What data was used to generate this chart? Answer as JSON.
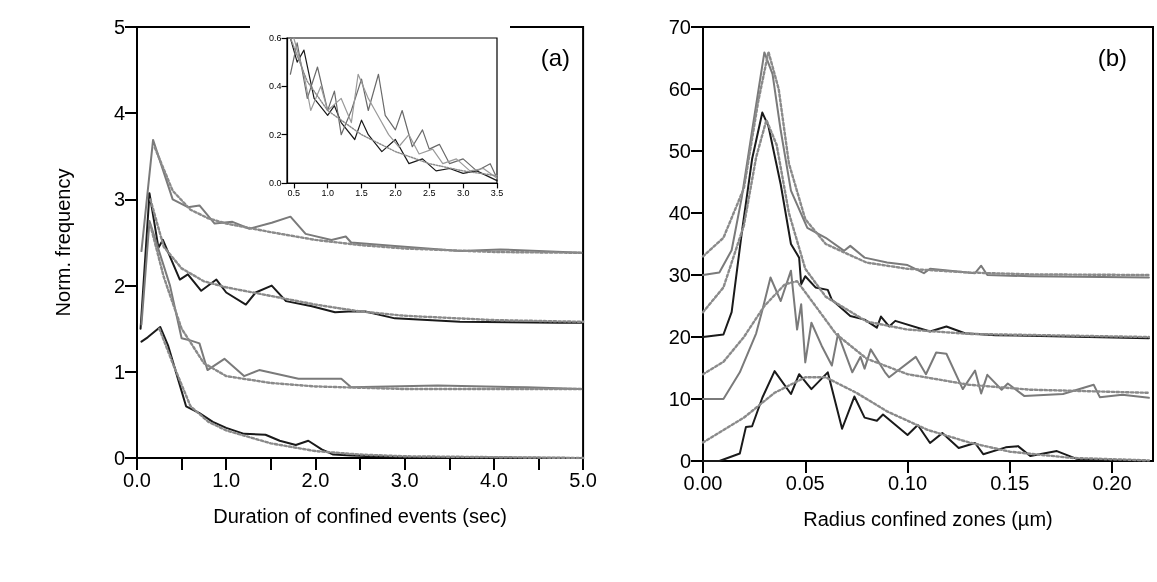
{
  "chart_data": [
    {
      "type": "line",
      "xlabel": "Duration of confined events (sec)",
      "ylabel": "Norm. frequency",
      "annotations": [
        "(a)"
      ],
      "marker": "none",
      "xlim": [
        0,
        5
      ],
      "xticks": [
        {
          "value": 0,
          "label": "0.0"
        },
        {
          "value": 0.5,
          "label": null
        },
        {
          "value": 1,
          "label": "1.0"
        },
        {
          "value": 1.5,
          "label": null
        },
        {
          "value": 2,
          "label": "2.0"
        },
        {
          "value": 2.5,
          "label": null
        },
        {
          "value": 3,
          "label": "3.0"
        },
        {
          "value": 3.5,
          "label": null
        },
        {
          "value": 4,
          "label": "4.0"
        },
        {
          "value": 4.5,
          "label": null
        },
        {
          "value": 5,
          "label": "5.0"
        }
      ],
      "ylim": [
        0,
        5
      ],
      "yticks": [
        0,
        1,
        2,
        3,
        4,
        5
      ],
      "series": [
        {
          "color": "#7a7a7a",
          "x": [
            0.05,
            0.18,
            0.4,
            0.57,
            0.7,
            0.87,
            1.07,
            1.26,
            1.51,
            1.72,
            1.89,
            2.18,
            2.34,
            2.4,
            2.89,
            3.62,
            4.07,
            4.98
          ],
          "values": [
            2.4,
            3.69,
            3.0,
            2.91,
            2.93,
            2.72,
            2.74,
            2.66,
            2.73,
            2.8,
            2.6,
            2.53,
            2.57,
            2.5,
            2.46,
            2.4,
            2.42,
            2.38
          ]
        },
        {
          "color": "#1a1a1a",
          "x": [
            0.04,
            0.14,
            0.24,
            0.29,
            0.48,
            0.57,
            0.72,
            0.89,
            1.0,
            1.22,
            1.33,
            1.51,
            1.67,
            1.96,
            2.22,
            2.37,
            2.56,
            2.89,
            3.62,
            4.73,
            4.98
          ],
          "values": [
            1.5,
            3.07,
            2.44,
            2.53,
            2.07,
            2.13,
            1.94,
            2.07,
            1.92,
            1.78,
            1.92,
            2.0,
            1.82,
            1.76,
            1.69,
            1.7,
            1.7,
            1.62,
            1.58,
            1.57,
            1.57
          ]
        },
        {
          "color": "#7a7a7a",
          "x": [
            0.05,
            0.14,
            0.37,
            0.5,
            0.58,
            0.7,
            0.79,
            0.98,
            1.2,
            1.37,
            1.81,
            2.29,
            2.4,
            3.37,
            4.37,
            4.98
          ],
          "values": [
            1.55,
            2.75,
            2.0,
            1.39,
            1.37,
            1.33,
            1.02,
            1.15,
            0.95,
            1.02,
            0.92,
            0.92,
            0.82,
            0.84,
            0.82,
            0.8
          ]
        },
        {
          "color": "#1a1a1a",
          "x": [
            0.05,
            0.12,
            0.26,
            0.35,
            0.45,
            0.55,
            0.7,
            0.85,
            1.0,
            1.2,
            1.44,
            1.6,
            1.78,
            1.92,
            2.07,
            2.2,
            2.4,
            3.0,
            4.98
          ],
          "values": [
            1.35,
            1.4,
            1.52,
            1.3,
            0.95,
            0.6,
            0.52,
            0.42,
            0.35,
            0.28,
            0.27,
            0.2,
            0.15,
            0.2,
            0.1,
            0.04,
            0.03,
            0.01,
            0
          ]
        },
        {
          "color": "#8a8a8a",
          "line_style": "dotted",
          "x": [
            0.2,
            0.4,
            0.6,
            0.8,
            1.0,
            1.5,
            2.0,
            2.5,
            3.0,
            4.0,
            5.0
          ],
          "values": [
            3.6,
            3.1,
            2.88,
            2.78,
            2.72,
            2.62,
            2.53,
            2.47,
            2.43,
            2.39,
            2.38
          ]
        },
        {
          "color": "#8a8a8a",
          "line_style": "dotted",
          "x": [
            0.15,
            0.3,
            0.5,
            0.75,
            1.0,
            1.5,
            2.0,
            2.5,
            3.0,
            4.0,
            5.0
          ],
          "values": [
            3.0,
            2.45,
            2.2,
            2.05,
            1.98,
            1.88,
            1.78,
            1.7,
            1.65,
            1.6,
            1.58
          ]
        },
        {
          "color": "#8a8a8a",
          "line_style": "dotted",
          "x": [
            0.15,
            0.3,
            0.5,
            0.75,
            1.0,
            1.5,
            2.0,
            3.0,
            5.0
          ],
          "values": [
            2.7,
            2.1,
            1.5,
            1.1,
            0.95,
            0.87,
            0.83,
            0.8,
            0.8
          ]
        },
        {
          "color": "#8a8a8a",
          "line_style": "dotted",
          "x": [
            0.25,
            0.4,
            0.6,
            0.8,
            1.0,
            1.5,
            2.0,
            2.5,
            3.0,
            5.0
          ],
          "values": [
            1.5,
            1.1,
            0.6,
            0.42,
            0.32,
            0.17,
            0.08,
            0.04,
            0.02,
            0
          ]
        }
      ]
    },
    {
      "type": "line",
      "marker": "none",
      "xlim": [
        0.4,
        3.5
      ],
      "xticks": [
        {
          "value": 0.5,
          "label": "0.5"
        },
        {
          "value": 1,
          "label": "1.0"
        },
        {
          "value": 1.5,
          "label": "1.5"
        },
        {
          "value": 2,
          "label": "2.0"
        },
        {
          "value": 2.5,
          "label": "2.5"
        },
        {
          "value": 3,
          "label": "3.0"
        },
        {
          "value": 3.5,
          "label": "3.5"
        }
      ],
      "ylim": [
        0,
        0.6
      ],
      "yticks": [
        {
          "value": 0,
          "label": "0.0"
        },
        {
          "value": 0.2,
          "label": "0.2"
        },
        {
          "value": 0.4,
          "label": "0.4"
        },
        {
          "value": 0.6,
          "label": "0.6"
        }
      ],
      "series": [
        {
          "color": "#1a1a1a",
          "x": [
            0.45,
            0.55,
            0.65,
            0.8,
            1.0,
            1.1,
            1.2,
            1.4,
            1.5,
            1.6,
            1.8,
            2.0,
            2.2,
            2.4,
            2.6,
            2.8,
            3.0,
            3.2,
            3.5
          ],
          "values": [
            0.6,
            0.5,
            0.55,
            0.35,
            0.28,
            0.32,
            0.25,
            0.18,
            0.26,
            0.2,
            0.13,
            0.18,
            0.08,
            0.1,
            0.05,
            0.06,
            0.04,
            0.05,
            0.01
          ]
        },
        {
          "color": "#6a6a6a",
          "x": [
            0.45,
            0.55,
            0.7,
            0.85,
            1.0,
            1.1,
            1.2,
            1.35,
            1.5,
            1.6,
            1.75,
            1.85,
            2.0,
            2.1,
            2.25,
            2.4,
            2.5,
            2.65,
            2.8,
            3.0,
            3.2,
            3.4,
            3.5
          ],
          "values": [
            0.45,
            0.58,
            0.35,
            0.48,
            0.3,
            0.38,
            0.2,
            0.3,
            0.43,
            0.3,
            0.45,
            0.28,
            0.22,
            0.3,
            0.15,
            0.22,
            0.14,
            0.16,
            0.08,
            0.1,
            0.05,
            0.08,
            0.02
          ]
        },
        {
          "color": "#9a9a9a",
          "x": [
            0.5,
            0.65,
            0.75,
            0.9,
            1.0,
            1.2,
            1.35,
            1.45,
            1.6,
            1.7,
            1.9,
            2.05,
            2.2,
            2.35,
            2.55,
            2.7,
            2.9,
            3.1,
            3.3,
            3.5
          ],
          "values": [
            0.6,
            0.45,
            0.3,
            0.4,
            0.3,
            0.35,
            0.25,
            0.45,
            0.35,
            0.3,
            0.2,
            0.15,
            0.2,
            0.12,
            0.14,
            0.08,
            0.1,
            0.05,
            0.06,
            0.02
          ]
        },
        {
          "color": "#8a8a8a",
          "line_style": "dotted",
          "x": [
            0.45,
            0.7,
            1.0,
            1.5,
            2.0,
            2.5,
            3.0,
            3.5
          ],
          "values": [
            0.6,
            0.42,
            0.3,
            0.2,
            0.13,
            0.08,
            0.05,
            0.03
          ]
        }
      ]
    },
    {
      "type": "line",
      "xlabel": "Radius confined zones (µm)",
      "annotations": [
        "(b)"
      ],
      "marker": "none",
      "xlim": [
        0,
        0.22
      ],
      "xticks": [
        {
          "value": 0,
          "label": "0.00"
        },
        {
          "value": 0.05,
          "label": "0.05"
        },
        {
          "value": 0.1,
          "label": "0.10"
        },
        {
          "value": 0.15,
          "label": "0.15"
        },
        {
          "value": 0.2,
          "label": "0.20"
        }
      ],
      "ylim": [
        0,
        70
      ],
      "yticks": [
        0,
        10,
        20,
        30,
        40,
        50,
        60,
        70
      ],
      "series": [
        {
          "color": "#7a7a7a",
          "x": [
            0,
            0.008,
            0.014,
            0.019,
            0.024,
            0.03,
            0.034,
            0.038,
            0.043,
            0.051,
            0.06,
            0.069,
            0.072,
            0.079,
            0.09,
            0.1,
            0.108,
            0.111,
            0.133,
            0.136,
            0.139,
            0.16,
            0.218
          ],
          "values": [
            30,
            30.4,
            34,
            42.6,
            53.3,
            65.9,
            62.4,
            53.3,
            43.6,
            37.6,
            36,
            33.9,
            34.7,
            32.8,
            32,
            31.6,
            30.3,
            31,
            30.3,
            31.5,
            30,
            29.8,
            29.6
          ]
        },
        {
          "color": "#1a1a1a",
          "x": [
            0,
            0.01,
            0.014,
            0.019,
            0.024,
            0.029,
            0.032,
            0.038,
            0.043,
            0.047,
            0.048,
            0.05,
            0.055,
            0.061,
            0.063,
            0.072,
            0.079,
            0.085,
            0.087,
            0.091,
            0.094,
            0.111,
            0.119,
            0.128,
            0.143,
            0.218
          ],
          "values": [
            20,
            20.4,
            24,
            36.9,
            48.7,
            56.2,
            54,
            44.6,
            35,
            32.8,
            28.5,
            29.8,
            28,
            27.6,
            26,
            23.4,
            22.8,
            21.5,
            23.3,
            21.7,
            22.6,
            20.9,
            21.7,
            20.6,
            20.3,
            19.8
          ]
        },
        {
          "color": "#7a7a7a",
          "x": [
            0,
            0.01,
            0.018,
            0.026,
            0.029,
            0.033,
            0.038,
            0.043,
            0.046,
            0.048,
            0.05,
            0.053,
            0.058,
            0.063,
            0.066,
            0.073,
            0.077,
            0.079,
            0.082,
            0.089,
            0.091,
            0.104,
            0.109,
            0.114,
            0.119,
            0.127,
            0.133,
            0.136,
            0.139,
            0.146,
            0.149,
            0.157,
            0.176,
            0.191,
            0.194,
            0.205,
            0.218
          ],
          "values": [
            10,
            10,
            14.3,
            20.6,
            24.3,
            29.6,
            25.8,
            30.7,
            21.2,
            25.3,
            15.9,
            22.3,
            18.6,
            15.4,
            20.5,
            14.3,
            16.8,
            14.9,
            18,
            14.3,
            13.5,
            16.8,
            14,
            17.5,
            17.3,
            11.6,
            14.6,
            10.9,
            13.9,
            11.5,
            12.5,
            10.5,
            10.8,
            12.3,
            10.3,
            10.7,
            10.2
          ]
        },
        {
          "color": "#1a1a1a",
          "x": [
            0,
            0.008,
            0.018,
            0.021,
            0.024,
            0.029,
            0.035,
            0.043,
            0.047,
            0.053,
            0.061,
            0.068,
            0.074,
            0.079,
            0.085,
            0.088,
            0.1,
            0.105,
            0.111,
            0.117,
            0.125,
            0.133,
            0.137,
            0.148,
            0.154,
            0.16,
            0.173,
            0.183,
            0.218
          ],
          "values": [
            0,
            0,
            1.2,
            5.5,
            5.6,
            10.2,
            14.5,
            10.8,
            14,
            11.6,
            14.3,
            5.2,
            10.4,
            7,
            6.5,
            7.5,
            4.2,
            5.8,
            2.9,
            4.5,
            2.1,
            2.9,
            1.1,
            2.2,
            2.4,
            0.8,
            1.6,
            0.3,
            0
          ]
        },
        {
          "color": "#8a8a8a",
          "line_style": "dotted",
          "x": [
            0,
            0.01,
            0.02,
            0.027,
            0.032,
            0.037,
            0.042,
            0.05,
            0.06,
            0.08,
            0.1,
            0.13,
            0.16,
            0.218
          ],
          "values": [
            33,
            36,
            44,
            58,
            66,
            60,
            48,
            39,
            35,
            32,
            31,
            30.4,
            30.1,
            30
          ]
        },
        {
          "color": "#8a8a8a",
          "line_style": "dotted",
          "x": [
            0,
            0.01,
            0.02,
            0.026,
            0.031,
            0.036,
            0.042,
            0.05,
            0.06,
            0.08,
            0.1,
            0.13,
            0.218
          ],
          "values": [
            24,
            28,
            38,
            49,
            55,
            51,
            40,
            31,
            26.5,
            22.5,
            21.2,
            20.5,
            20
          ]
        },
        {
          "color": "#8a8a8a",
          "line_style": "dotted",
          "x": [
            0,
            0.01,
            0.02,
            0.03,
            0.04,
            0.046,
            0.055,
            0.065,
            0.08,
            0.1,
            0.13,
            0.16,
            0.218
          ],
          "values": [
            14,
            16,
            20,
            25,
            28.5,
            29,
            25,
            20.5,
            16.5,
            14,
            12.3,
            11.5,
            11
          ]
        },
        {
          "color": "#8a8a8a",
          "line_style": "dotted",
          "x": [
            0,
            0.02,
            0.035,
            0.05,
            0.06,
            0.075,
            0.09,
            0.11,
            0.13,
            0.15,
            0.18,
            0.218
          ],
          "values": [
            3,
            7,
            11,
            13.5,
            13.5,
            11,
            8,
            5,
            3,
            1.5,
            0.5,
            0.1
          ]
        }
      ]
    }
  ]
}
